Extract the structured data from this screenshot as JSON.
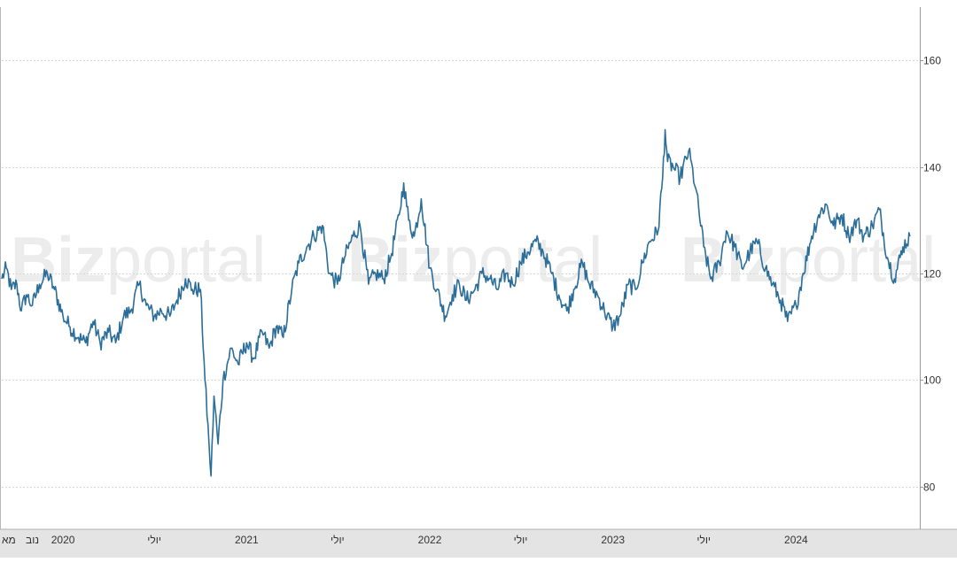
{
  "watermark": {
    "bold": "Biz",
    "light": "portal"
  },
  "chart_data": {
    "type": "line",
    "title": "",
    "xlabel": "",
    "ylabel": "",
    "x_range": [
      "2019-09-01",
      "2024-08-31"
    ],
    "ylim": [
      72,
      170
    ],
    "y_ticks": [
      80,
      100,
      120,
      140,
      160
    ],
    "y_axis_side": "right",
    "grid": "horizontal, dotted",
    "x_ticks": [
      {
        "date": "2019-09-01",
        "label": "מא"
      },
      {
        "date": "2019-11-01",
        "label": "נוב"
      },
      {
        "date": "2020-01-01",
        "label": "2020"
      },
      {
        "date": "2020-07-01",
        "label": "יולי"
      },
      {
        "date": "2021-01-01",
        "label": "2021"
      },
      {
        "date": "2021-07-01",
        "label": "יולי"
      },
      {
        "date": "2022-01-01",
        "label": "2022"
      },
      {
        "date": "2022-07-01",
        "label": "יולי"
      },
      {
        "date": "2023-01-01",
        "label": "2023"
      },
      {
        "date": "2023-07-01",
        "label": "יולי"
      },
      {
        "date": "2024-01-01",
        "label": "2024"
      }
    ],
    "series": [
      {
        "color": "#2b6e99",
        "points": [
          [
            "2019-09-01",
            119
          ],
          [
            "2019-09-10",
            121
          ],
          [
            "2019-09-20",
            117
          ],
          [
            "2019-10-01",
            118
          ],
          [
            "2019-10-10",
            113
          ],
          [
            "2019-10-20",
            116
          ],
          [
            "2019-11-01",
            114
          ],
          [
            "2019-11-15",
            118
          ],
          [
            "2019-12-01",
            120
          ],
          [
            "2019-12-15",
            117
          ],
          [
            "2020-01-01",
            112
          ],
          [
            "2020-01-15",
            110
          ],
          [
            "2020-02-01",
            108
          ],
          [
            "2020-02-15",
            107
          ],
          [
            "2020-03-01",
            111
          ],
          [
            "2020-03-15",
            107
          ],
          [
            "2020-04-01",
            109
          ],
          [
            "2020-04-15",
            107
          ],
          [
            "2020-05-01",
            112
          ],
          [
            "2020-05-15",
            113
          ],
          [
            "2020-06-01",
            118
          ],
          [
            "2020-06-15",
            114
          ],
          [
            "2020-07-01",
            112
          ],
          [
            "2020-07-15",
            113
          ],
          [
            "2020-08-01",
            112
          ],
          [
            "2020-08-15",
            115
          ],
          [
            "2020-09-01",
            119
          ],
          [
            "2020-09-15",
            117
          ],
          [
            "2020-10-01",
            117
          ],
          [
            "2020-10-10",
            100
          ],
          [
            "2020-10-18",
            88
          ],
          [
            "2020-10-22",
            82
          ],
          [
            "2020-10-28",
            97
          ],
          [
            "2020-11-05",
            88
          ],
          [
            "2020-11-15",
            100
          ],
          [
            "2020-12-01",
            106
          ],
          [
            "2020-12-15",
            103
          ],
          [
            "2021-01-01",
            107
          ],
          [
            "2021-01-15",
            104
          ],
          [
            "2021-02-01",
            109
          ],
          [
            "2021-02-15",
            106
          ],
          [
            "2021-03-01",
            110
          ],
          [
            "2021-03-15",
            108
          ],
          [
            "2021-04-01",
            117
          ],
          [
            "2021-04-15",
            122
          ],
          [
            "2021-05-01",
            125
          ],
          [
            "2021-05-15",
            127
          ],
          [
            "2021-06-01",
            129
          ],
          [
            "2021-06-15",
            120
          ],
          [
            "2021-07-01",
            118
          ],
          [
            "2021-07-15",
            123
          ],
          [
            "2021-08-01",
            127
          ],
          [
            "2021-08-15",
            129
          ],
          [
            "2021-09-01",
            118
          ],
          [
            "2021-09-15",
            120
          ],
          [
            "2021-10-01",
            119
          ],
          [
            "2021-10-15",
            123
          ],
          [
            "2021-11-01",
            131
          ],
          [
            "2021-11-10",
            137
          ],
          [
            "2021-11-20",
            130
          ],
          [
            "2021-12-01",
            127
          ],
          [
            "2021-12-15",
            134
          ],
          [
            "2022-01-01",
            121
          ],
          [
            "2022-01-15",
            117
          ],
          [
            "2022-02-01",
            112
          ],
          [
            "2022-02-15",
            116
          ],
          [
            "2022-03-01",
            118
          ],
          [
            "2022-03-15",
            115
          ],
          [
            "2022-04-01",
            117
          ],
          [
            "2022-04-15",
            120
          ],
          [
            "2022-05-01",
            119
          ],
          [
            "2022-05-15",
            117
          ],
          [
            "2022-06-01",
            120
          ],
          [
            "2022-06-15",
            118
          ],
          [
            "2022-07-01",
            122
          ],
          [
            "2022-07-15",
            124
          ],
          [
            "2022-08-01",
            126
          ],
          [
            "2022-08-15",
            124
          ],
          [
            "2022-09-01",
            120
          ],
          [
            "2022-09-15",
            116
          ],
          [
            "2022-10-01",
            113
          ],
          [
            "2022-10-15",
            117
          ],
          [
            "2022-11-01",
            122
          ],
          [
            "2022-11-15",
            118
          ],
          [
            "2022-12-01",
            116
          ],
          [
            "2022-12-15",
            113
          ],
          [
            "2023-01-01",
            110
          ],
          [
            "2023-01-15",
            112
          ],
          [
            "2023-02-01",
            118
          ],
          [
            "2023-02-15",
            117
          ],
          [
            "2023-03-01",
            122
          ],
          [
            "2023-03-15",
            126
          ],
          [
            "2023-04-01",
            128
          ],
          [
            "2023-04-10",
            138
          ],
          [
            "2023-04-15",
            147
          ],
          [
            "2023-04-20",
            141
          ],
          [
            "2023-05-01",
            140
          ],
          [
            "2023-05-15",
            138
          ],
          [
            "2023-06-01",
            143
          ],
          [
            "2023-06-15",
            136
          ],
          [
            "2023-07-01",
            125
          ],
          [
            "2023-07-15",
            119
          ],
          [
            "2023-08-01",
            122
          ],
          [
            "2023-08-15",
            128
          ],
          [
            "2023-09-01",
            125
          ],
          [
            "2023-09-15",
            121
          ],
          [
            "2023-10-01",
            124
          ],
          [
            "2023-10-15",
            126
          ],
          [
            "2023-11-01",
            121
          ],
          [
            "2023-11-15",
            118
          ],
          [
            "2023-12-01",
            115
          ],
          [
            "2023-12-15",
            111
          ],
          [
            "2024-01-01",
            114
          ],
          [
            "2024-01-15",
            120
          ],
          [
            "2024-02-01",
            127
          ],
          [
            "2024-02-15",
            131
          ],
          [
            "2024-03-01",
            133
          ],
          [
            "2024-03-15",
            129
          ],
          [
            "2024-04-01",
            131
          ],
          [
            "2024-04-15",
            127
          ],
          [
            "2024-05-01",
            130
          ],
          [
            "2024-05-15",
            127
          ],
          [
            "2024-06-01",
            129
          ],
          [
            "2024-06-15",
            132
          ],
          [
            "2024-07-01",
            123
          ],
          [
            "2024-07-15",
            119
          ],
          [
            "2024-08-01",
            125
          ],
          [
            "2024-08-15",
            127
          ]
        ]
      }
    ]
  }
}
